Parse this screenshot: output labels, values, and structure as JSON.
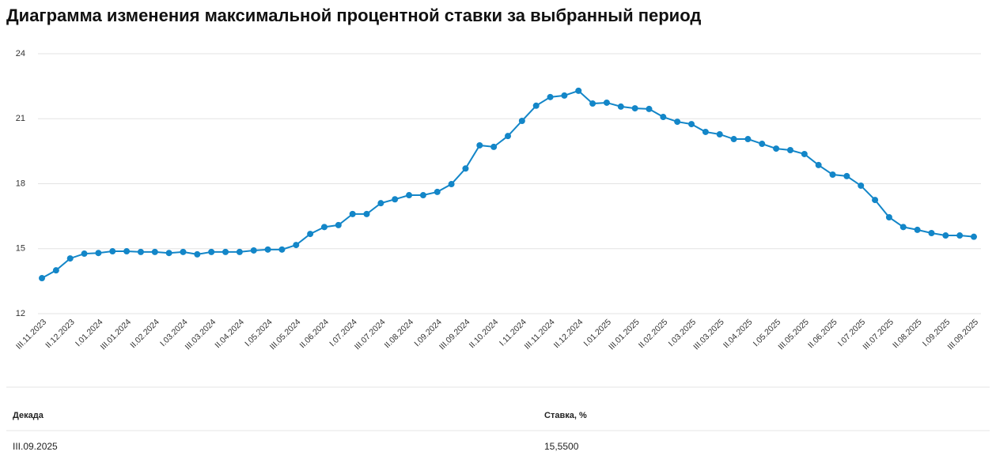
{
  "chart_data": {
    "type": "line",
    "title": "Диаграмма изменения максимальной процентной ставки за выбранный период",
    "categories": [
      "III.11.2023",
      null,
      "II.12.2023",
      null,
      "I.01.2024",
      null,
      "III.01.2024",
      null,
      "II.02.2024",
      null,
      "I.03.2024",
      null,
      "III.03.2024",
      null,
      "II.04.2024",
      null,
      "I.05.2024",
      null,
      "III.05.2024",
      null,
      "II.06.2024",
      null,
      "I.07.2024",
      null,
      "III.07.2024",
      null,
      "II.08.2024",
      null,
      "I.09.2024",
      null,
      "III.09.2024",
      null,
      "II.10.2024",
      null,
      "I.11.2024",
      null,
      "III.11.2024",
      null,
      "II.12.2024",
      null,
      "I.01.2025",
      null,
      "III.01.2025",
      null,
      "II.02.2025",
      null,
      "I.03.2025",
      null,
      "III.03.2025",
      null,
      "II.04.2025",
      null,
      "I.05.2025",
      null,
      "III.05.2025",
      null,
      "II.06.2025",
      null,
      "I.07.2025",
      null,
      "III.07.2025",
      null,
      "II.08.2025",
      null,
      "I.09.2025",
      null,
      "III.09.2025"
    ],
    "values": [
      13.64,
      14.0,
      14.55,
      14.77,
      14.8,
      14.88,
      14.88,
      14.85,
      14.85,
      14.8,
      14.85,
      14.74,
      14.85,
      14.85,
      14.85,
      14.92,
      14.96,
      14.96,
      15.17,
      15.68,
      16.0,
      16.09,
      16.6,
      16.6,
      17.1,
      17.28,
      17.47,
      17.47,
      17.62,
      17.98,
      18.7,
      19.77,
      19.7,
      20.2,
      20.9,
      21.6,
      22.0,
      22.07,
      22.29,
      21.7,
      21.74,
      21.56,
      21.48,
      21.45,
      21.08,
      20.86,
      20.75,
      20.39,
      20.28,
      20.06,
      20.06,
      19.84,
      19.62,
      19.55,
      19.37,
      18.86,
      18.42,
      18.35,
      17.91,
      17.25,
      16.45,
      16.0,
      15.87,
      15.72,
      15.61,
      15.61,
      15.55
    ],
    "color": "#1386c8",
    "ylim": [
      12,
      24
    ],
    "yticks": [
      12,
      15,
      18,
      21,
      24
    ],
    "grid": true
  },
  "table": {
    "headers": [
      "Декада",
      "Ставка, %"
    ],
    "rows": [
      [
        "III.09.2025",
        "15,5500"
      ]
    ]
  }
}
